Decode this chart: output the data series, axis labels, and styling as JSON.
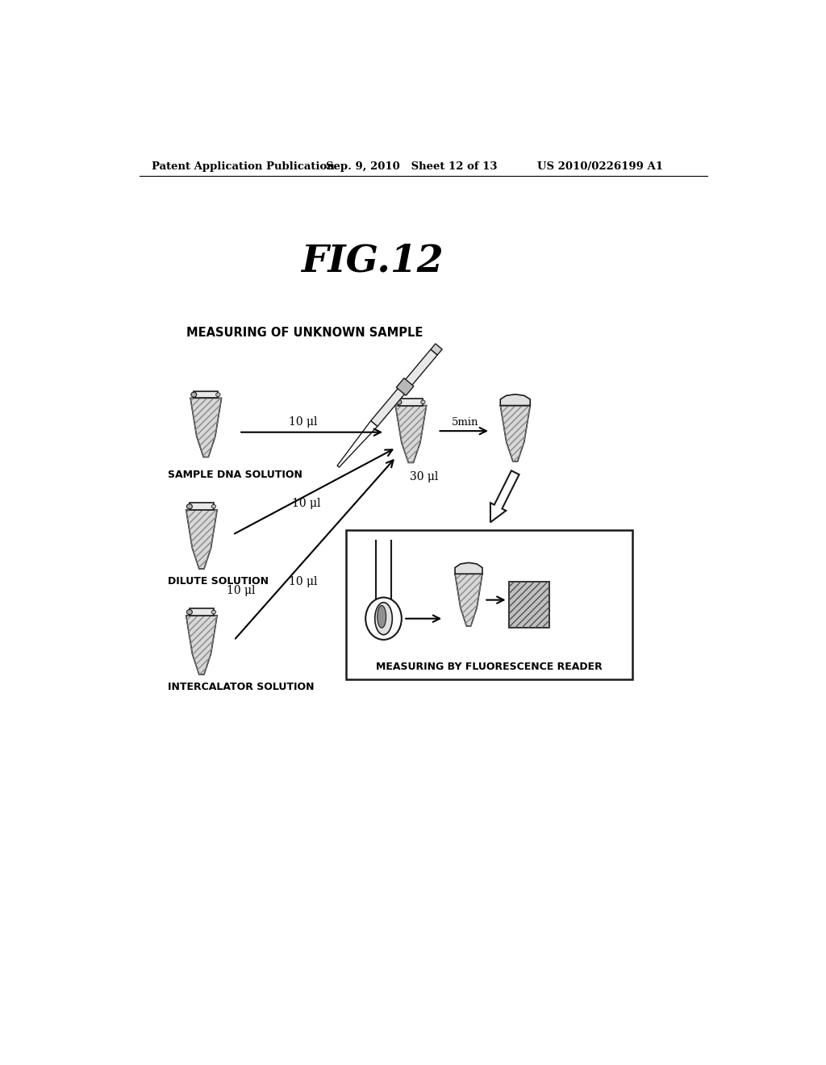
{
  "background_color": "#ffffff",
  "header_left": "Patent Application Publication",
  "header_mid": "Sep. 9, 2010   Sheet 12 of 13",
  "header_right": "US 2010/0226199 A1",
  "fig_title": "FIG.12",
  "section_title": "MEASURING OF UNKNOWN SAMPLE",
  "label_sample_dna": "SAMPLE DNA SOLUTION",
  "label_dilute": "DILUTE SOLUTION",
  "label_intercalator": "INTERCALATOR SOLUTION",
  "label_fluorescence": "MEASURING BY FLUORESCENCE READER",
  "label_10ul_1": "10 μl",
  "label_10ul_2": "10 μl",
  "label_10ul_3": "10 μl",
  "label_30ul": "30 μl",
  "label_5min": "5min",
  "text_color": "#000000",
  "line_color": "#1a1a1a"
}
